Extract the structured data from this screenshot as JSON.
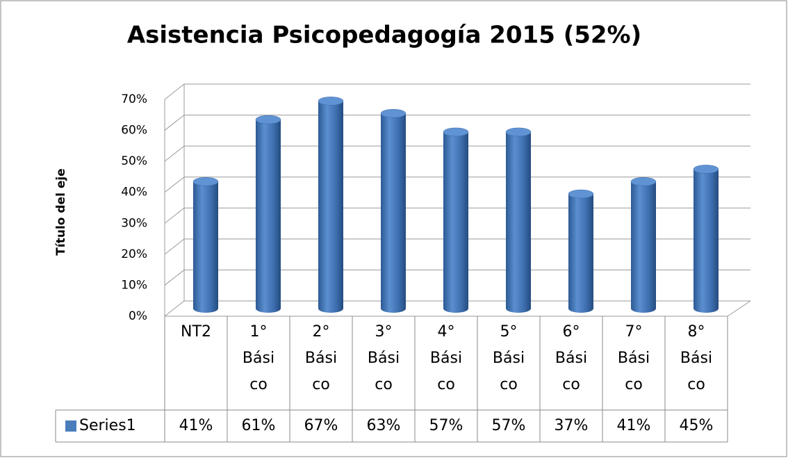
{
  "chart_data": {
    "type": "bar3d",
    "title": "Asistencia Psicopedagogía 2015 (52%)",
    "y_axis_label": "Título del eje",
    "categories": [
      "NT2",
      "1° Básico",
      "2° Básico",
      "3° Básico",
      "4° Básico",
      "5° Básico",
      "6° Básico",
      "7° Básico",
      "8° Básico"
    ],
    "series": [
      {
        "name": "Series1",
        "color": "#4a7ebb",
        "values": [
          41,
          61,
          67,
          63,
          57,
          57,
          37,
          41,
          45
        ],
        "value_labels": [
          "41%",
          "61%",
          "67%",
          "63%",
          "57%",
          "57%",
          "37%",
          "41%",
          "45%"
        ]
      }
    ],
    "ylim": [
      0,
      70
    ],
    "yticks": [
      {
        "value": 0,
        "label": "0%"
      },
      {
        "value": 10,
        "label": "10%"
      },
      {
        "value": 20,
        "label": "20%"
      },
      {
        "value": 30,
        "label": "30%"
      },
      {
        "value": 40,
        "label": "40%"
      },
      {
        "value": 50,
        "label": "50%"
      },
      {
        "value": 60,
        "label": "60%"
      },
      {
        "value": 70,
        "label": "70%"
      }
    ],
    "grid": true
  }
}
